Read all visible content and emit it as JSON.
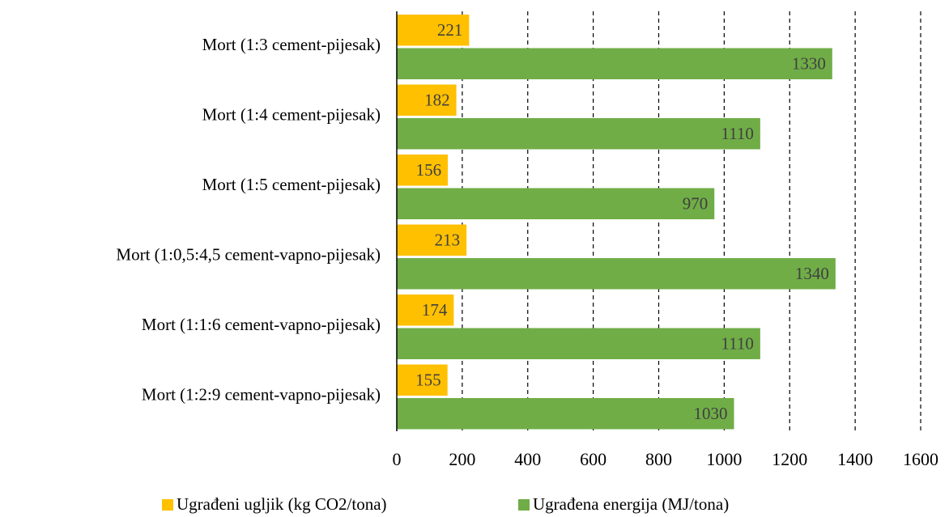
{
  "chart_data": {
    "type": "hbar",
    "categories": [
      "Mort (1:3 cement-pijesak)",
      "Mort (1:4 cement-pijesak)",
      "Mort (1:5 cement-pijesak)",
      "Mort (1:0,5:4,5 cement-vapno-pijesak)",
      "Mort (1:1:6 cement-vapno-pijesak)",
      "Mort (1:2:9 cement-vapno-pijesak)"
    ],
    "series": [
      {
        "name": "Ugrađeni ugljik (kg CO2/tona)",
        "color": "#FFC000",
        "values": [
          221,
          182,
          156,
          213,
          174,
          155
        ]
      },
      {
        "name": "Ugrađena energija (MJ/tona)",
        "color": "#70AD47",
        "values": [
          1330,
          1110,
          970,
          1340,
          1110,
          1030
        ]
      }
    ],
    "xlim": [
      0,
      1600
    ],
    "xticks": [
      0,
      200,
      400,
      600,
      800,
      1000,
      1200,
      1400,
      1600
    ],
    "grid": true,
    "legend": "bottom"
  }
}
